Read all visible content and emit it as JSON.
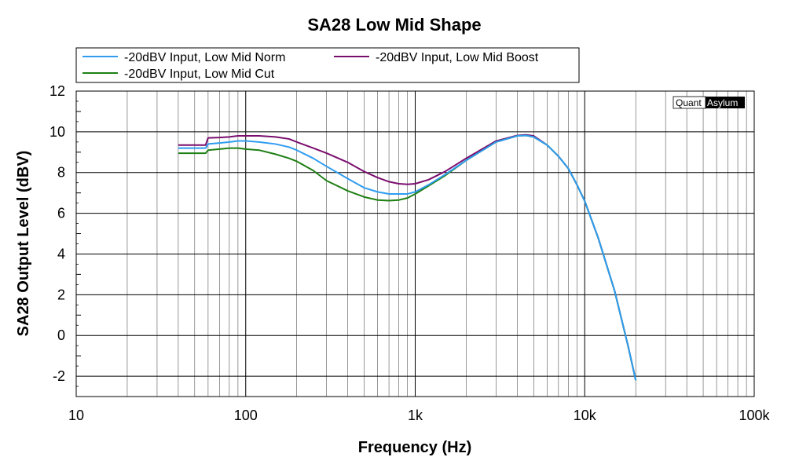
{
  "chart_data": {
    "type": "line",
    "title": "SA28 Low Mid Shape",
    "xlabel": "Frequency (Hz)",
    "ylabel": "SA28 Output Level (dBV)",
    "x_scale": "log",
    "xlim": [
      10,
      100000
    ],
    "ylim": [
      -3,
      12
    ],
    "x_ticks": [
      {
        "value": 10,
        "label": "10"
      },
      {
        "value": 100,
        "label": "100"
      },
      {
        "value": 1000,
        "label": "1k"
      },
      {
        "value": 10000,
        "label": "10k"
      },
      {
        "value": 100000,
        "label": "100k"
      }
    ],
    "y_ticks": [
      {
        "value": 12,
        "label": "12"
      },
      {
        "value": 10,
        "label": "10"
      },
      {
        "value": 8,
        "label": "8"
      },
      {
        "value": 6,
        "label": "6"
      },
      {
        "value": 4,
        "label": "4"
      },
      {
        "value": 2,
        "label": "2"
      },
      {
        "value": 0,
        "label": "0"
      },
      {
        "value": -2,
        "label": "-2"
      }
    ],
    "grid": true,
    "legend_position": "top-left",
    "series": [
      {
        "name": "-20dBV Input, Low Mid Norm",
        "color": "#2f9cf0",
        "x": [
          40,
          58,
          60,
          70,
          80,
          90,
          100,
          120,
          150,
          180,
          200,
          250,
          300,
          400,
          500,
          600,
          700,
          800,
          900,
          1000,
          1200,
          1500,
          2000,
          3000,
          4000,
          4500,
          5000,
          6000,
          7000,
          8000,
          9000,
          10000,
          12000,
          15000,
          18000,
          20000
        ],
        "y": [
          9.2,
          9.2,
          9.4,
          9.45,
          9.5,
          9.55,
          9.55,
          9.5,
          9.4,
          9.25,
          9.1,
          8.7,
          8.3,
          7.7,
          7.25,
          7.05,
          6.95,
          6.95,
          6.95,
          7.05,
          7.4,
          7.9,
          8.6,
          9.5,
          9.8,
          9.82,
          9.75,
          9.35,
          8.8,
          8.2,
          7.4,
          6.6,
          4.8,
          2.2,
          -0.5,
          -2.2
        ]
      },
      {
        "name": "-20dBV Input, Low Mid Boost",
        "color": "#7a0e6e",
        "x": [
          40,
          58,
          60,
          70,
          80,
          90,
          100,
          120,
          150,
          180,
          200,
          250,
          300,
          400,
          500,
          600,
          700,
          800,
          900,
          1000,
          1200,
          1500,
          2000,
          3000,
          4000,
          4500,
          5000,
          6000,
          7000,
          8000,
          9000,
          10000,
          12000,
          15000,
          18000,
          20000
        ],
        "y": [
          9.35,
          9.35,
          9.7,
          9.72,
          9.75,
          9.8,
          9.8,
          9.8,
          9.75,
          9.65,
          9.5,
          9.2,
          8.95,
          8.5,
          8.05,
          7.75,
          7.55,
          7.45,
          7.42,
          7.45,
          7.65,
          8.05,
          8.7,
          9.55,
          9.82,
          9.85,
          9.8,
          9.35,
          8.8,
          8.2,
          7.4,
          6.6,
          4.8,
          2.2,
          -0.5,
          -2.2
        ]
      },
      {
        "name": "-20dBV Input, Low Mid Cut",
        "color": "#1e7f14",
        "x": [
          40,
          58,
          60,
          70,
          80,
          90,
          100,
          120,
          150,
          180,
          200,
          250,
          300,
          400,
          500,
          600,
          700,
          800,
          900,
          1000,
          1200,
          1500,
          2000,
          3000,
          4000,
          4500,
          5000,
          6000,
          7000,
          8000,
          9000,
          10000,
          12000,
          15000,
          18000,
          20000
        ],
        "y": [
          8.95,
          8.95,
          9.1,
          9.15,
          9.2,
          9.2,
          9.15,
          9.1,
          8.9,
          8.7,
          8.55,
          8.1,
          7.6,
          7.1,
          6.8,
          6.65,
          6.62,
          6.65,
          6.75,
          6.95,
          7.35,
          7.85,
          8.6,
          9.5,
          9.8,
          9.82,
          9.75,
          9.35,
          8.8,
          8.2,
          7.4,
          6.6,
          4.8,
          2.2,
          -0.5,
          -2.2
        ]
      }
    ]
  },
  "watermark": {
    "left": "Quant",
    "right": "Asylum"
  }
}
